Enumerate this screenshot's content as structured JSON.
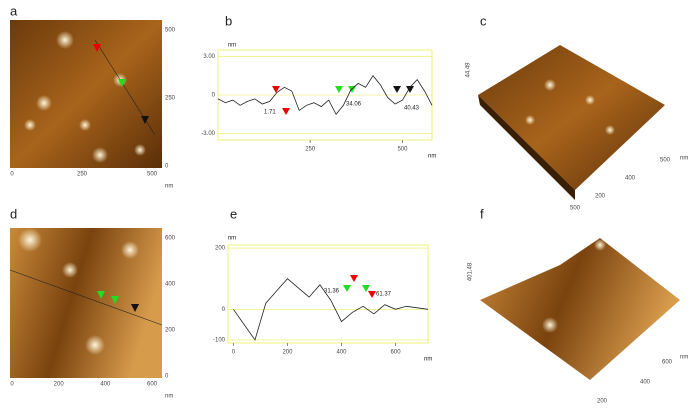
{
  "figure": {
    "panels": [
      "a",
      "b",
      "c",
      "d",
      "e",
      "f"
    ],
    "images": [
      {
        "right_ticks": [
          "500",
          "250",
          "0"
        ],
        "bottom_ticks": [
          "0",
          "250",
          "500"
        ],
        "unit": "nm"
      },
      {
        "right_ticks": [
          "600",
          "400",
          "200",
          "0"
        ],
        "bottom_ticks": [
          "0",
          "200",
          "400",
          "600"
        ],
        "unit": "nm"
      }
    ],
    "surfaces": [
      {
        "height": "44.49",
        "ticks": [
          "500",
          "400",
          "200",
          "500"
        ],
        "unit": "nm"
      },
      {
        "height": "401.48",
        "ticks": [
          "600",
          "400",
          "200"
        ],
        "unit": "nm"
      }
    ]
  },
  "chart_data": [
    {
      "type": "line",
      "xlabel": "nm",
      "ylabel": "nm",
      "color": "#222",
      "x": [
        0,
        20,
        40,
        60,
        80,
        100,
        120,
        140,
        160,
        180,
        200,
        220,
        240,
        260,
        280,
        300,
        320,
        340,
        360,
        380,
        400,
        420,
        440,
        460,
        480,
        500,
        520,
        540,
        560,
        580
      ],
      "values": [
        -0.3,
        -0.6,
        -0.4,
        -0.8,
        -0.5,
        -0.3,
        -0.7,
        -0.5,
        0.2,
        0.6,
        0.3,
        -1.2,
        -0.8,
        -0.6,
        -0.9,
        -0.4,
        -1.5,
        -0.8,
        0.4,
        0.9,
        0.6,
        1.5,
        0.8,
        -0.2,
        -0.7,
        -0.4,
        0.6,
        1.2,
        0.3,
        -0.8
      ],
      "xlim": [
        0,
        580
      ],
      "ylim": [
        -3.5,
        3.5
      ],
      "xticks": [
        250,
        500
      ],
      "yticks": [
        {
          "value": 3,
          "label": "3.00"
        },
        0,
        {
          "value": -3,
          "label": "-3.00"
        }
      ],
      "annotations": [
        "1.71",
        "34.06",
        "40.43"
      ]
    },
    {
      "type": "line",
      "xlabel": "nm",
      "ylabel": "nm",
      "color": "#222",
      "x": [
        0,
        40,
        80,
        120,
        160,
        200,
        240,
        280,
        320,
        360,
        400,
        440,
        480,
        520,
        560,
        600,
        640,
        680,
        720
      ],
      "values": [
        0,
        -50,
        -100,
        20,
        60,
        100,
        70,
        40,
        80,
        30,
        -40,
        -10,
        10,
        -15,
        15,
        0,
        10,
        5,
        0
      ],
      "xlim": [
        -20,
        720
      ],
      "ylim": [
        -110,
        210
      ],
      "xticks": [
        0,
        200,
        400,
        600
      ],
      "yticks": [
        200,
        0,
        -100
      ],
      "annotations": [
        "31.36",
        "61.37"
      ]
    }
  ]
}
